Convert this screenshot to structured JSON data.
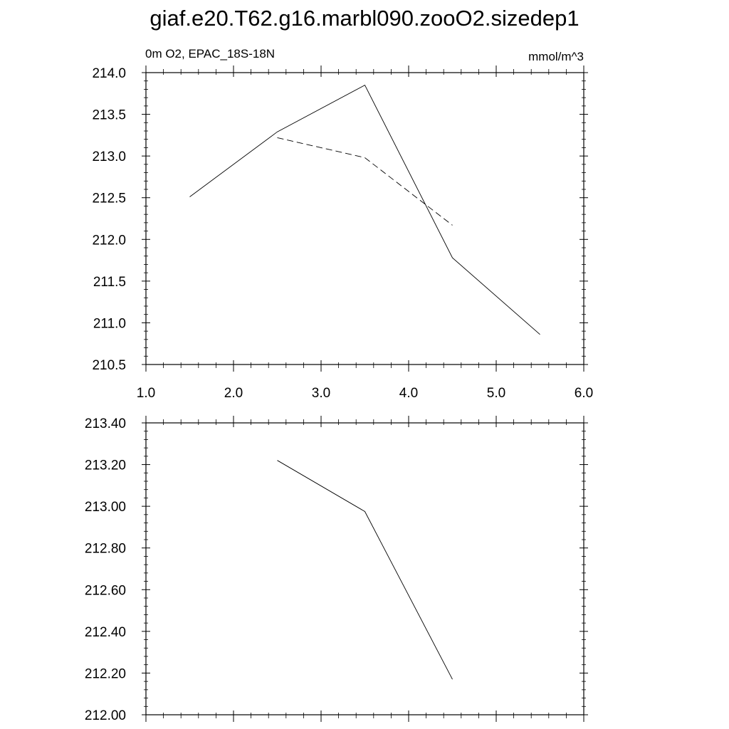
{
  "title": "giaf.e20.T62.g16.marbl090.zooO2.sizedep1",
  "left_subtitle": "0m O2, EPAC_18S-18N",
  "right_subtitle": "mmol/m^3",
  "chart_data": [
    {
      "type": "line",
      "title": "giaf.e20.T62.g16.marbl090.zooO2.sizedep1",
      "left_subtitle": "0m O2, EPAC_18S-18N",
      "units": "mmol/m^3",
      "xlim": [
        1.0,
        6.0
      ],
      "ylim": [
        210.5,
        214.0
      ],
      "xticks": [
        1.0,
        2.0,
        3.0,
        4.0,
        5.0,
        6.0
      ],
      "xtick_labels": [
        "1.0",
        "2.0",
        "3.0",
        "4.0",
        "5.0",
        "6.0"
      ],
      "yticks": [
        210.5,
        211.0,
        211.5,
        212.0,
        212.5,
        213.0,
        213.5,
        214.0
      ],
      "ytick_labels": [
        "210.5",
        "211.0",
        "211.5",
        "212.0",
        "212.5",
        "213.0",
        "213.5",
        "214.0"
      ],
      "grid": false,
      "series": [
        {
          "style": "solid",
          "x": [
            1.5,
            2.5,
            3.5,
            4.5,
            5.5
          ],
          "y": [
            212.51,
            213.29,
            213.85,
            211.78,
            210.86
          ]
        },
        {
          "style": "dashed",
          "x": [
            2.5,
            3.5,
            4.5
          ],
          "y": [
            213.22,
            212.98,
            212.17
          ]
        }
      ]
    },
    {
      "type": "line",
      "xlim": [
        1.0,
        6.0
      ],
      "ylim": [
        212.0,
        213.4
      ],
      "xticks": [
        1.0,
        2.0,
        3.0,
        4.0,
        5.0,
        6.0
      ],
      "yticks": [
        212.0,
        212.2,
        212.4,
        212.6,
        212.8,
        213.0,
        213.2,
        213.4
      ],
      "ytick_labels": [
        "212.00",
        "212.20",
        "212.40",
        "212.60",
        "212.80",
        "213.00",
        "213.20",
        "213.40"
      ],
      "grid": false,
      "series": [
        {
          "style": "solid",
          "x": [
            2.5,
            3.5,
            4.5
          ],
          "y": [
            213.22,
            212.975,
            212.17
          ]
        }
      ]
    }
  ]
}
